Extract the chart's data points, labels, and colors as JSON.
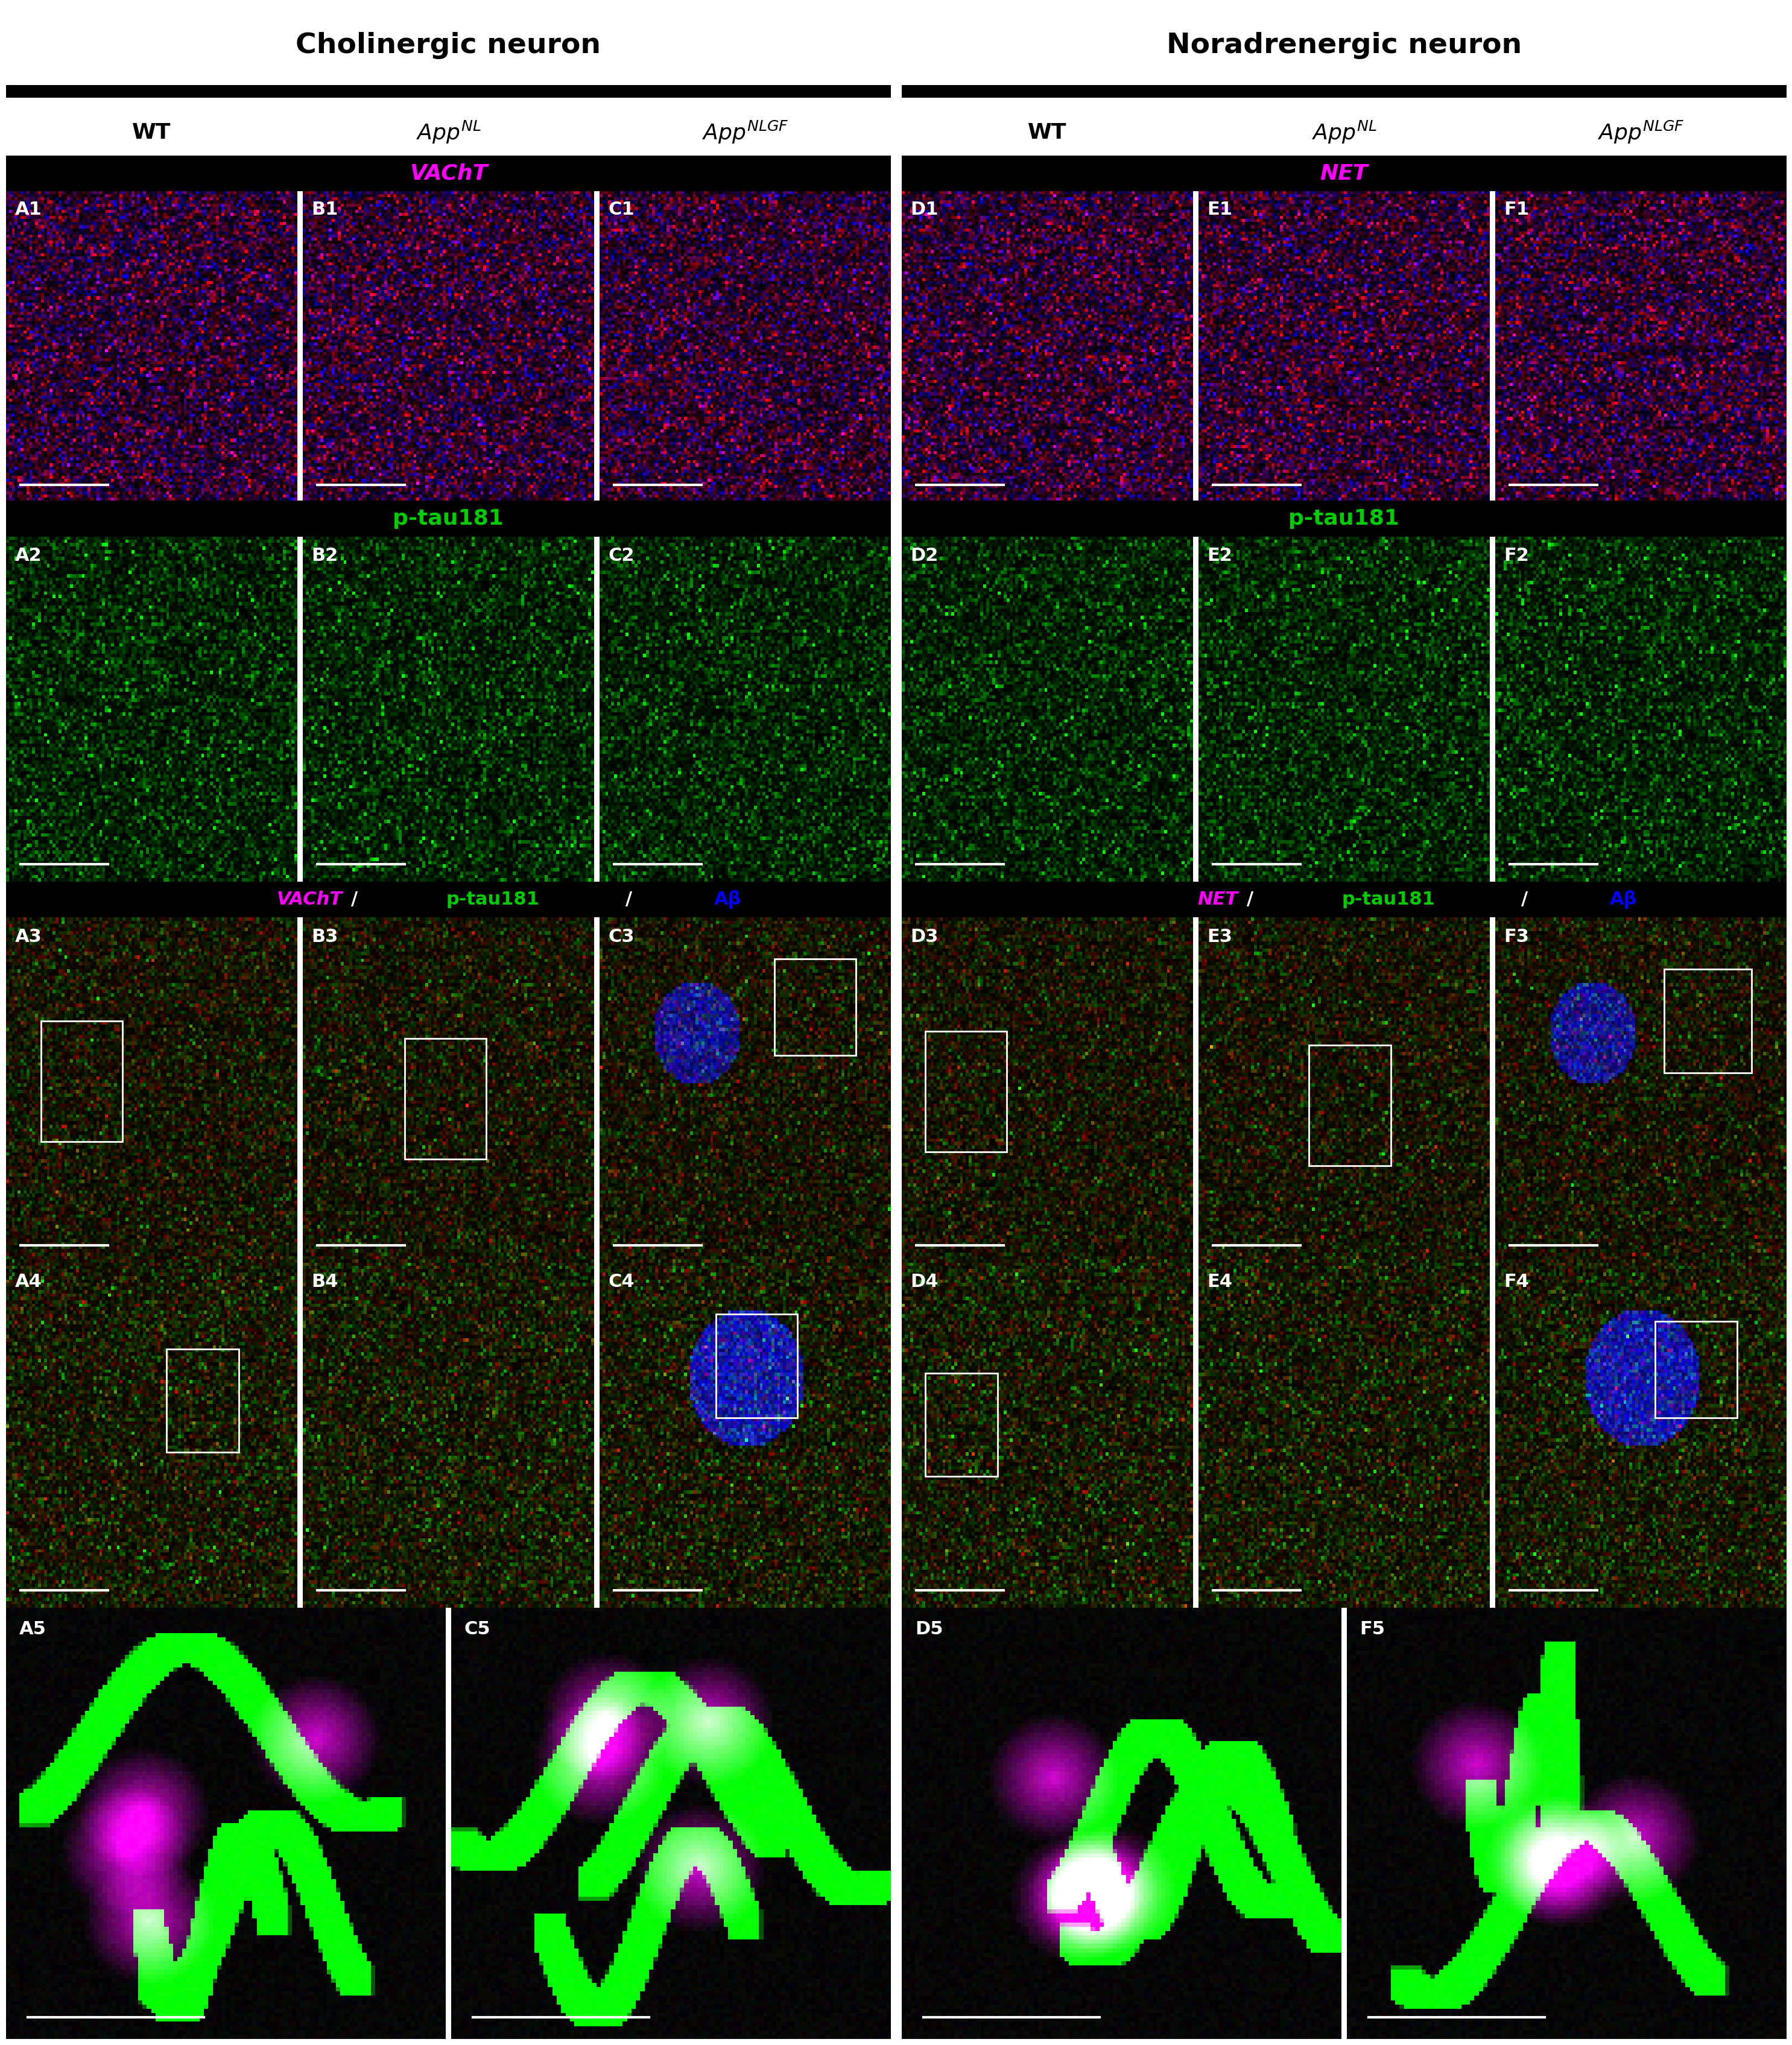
{
  "title_cholinergic": "Cholinergic neuron",
  "title_noradrenergic": "Noradrenergic neuron",
  "col_labels": [
    "WT",
    "App^NL",
    "App^NLGF"
  ],
  "row1_label_chol": "VAChT",
  "row1_label_nora": "NET",
  "row2_label": "p-tau181",
  "row3_label_chol": "VAChT/p-tau181/Aβ",
  "row3_label_nora": "NET/p-tau181/Aβ",
  "panel_labels_row1": [
    "A1",
    "B1",
    "C1",
    "D1",
    "E1",
    "F1"
  ],
  "panel_labels_row2": [
    "A2",
    "B2",
    "C2",
    "D2",
    "E2",
    "F2"
  ],
  "panel_labels_row3": [
    "A3",
    "B3",
    "C3",
    "D3",
    "E3",
    "F3"
  ],
  "panel_labels_row4": [
    "A4",
    "B4",
    "C4",
    "D4",
    "E4",
    "F4"
  ],
  "panel_labels_row5": [
    "A5",
    "C5",
    "D5",
    "F5"
  ],
  "magenta_color": "#FF00FF",
  "green_color": "#00CC00",
  "blue_color": "#0000FF",
  "background_color": "#000000",
  "white_color": "#FFFFFF",
  "header_bar_color": "#000000",
  "header_text_color": "#FFFFFF",
  "title_color": "#000000",
  "panel_label_color": "#FFFFFF",
  "section_divider_color": "#000000",
  "fig_bg": "#FFFFFF"
}
